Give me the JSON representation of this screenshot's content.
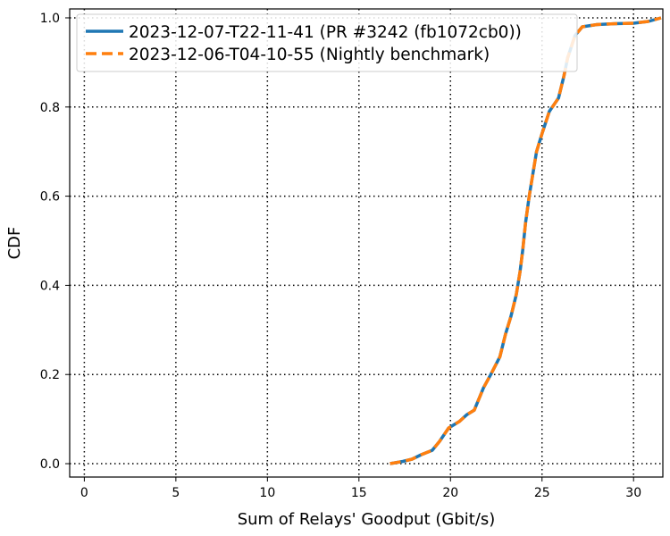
{
  "chart_data": {
    "type": "line",
    "title": "",
    "xlabel": "Sum of Relays' Goodput (Gbit/s)",
    "ylabel": "CDF",
    "xlim": [
      -0.8,
      31.6
    ],
    "ylim": [
      -0.03,
      1.02
    ],
    "xticks": [
      0,
      5,
      10,
      15,
      20,
      25,
      30
    ],
    "yticks": [
      0.0,
      0.2,
      0.4,
      0.6,
      0.8,
      1.0
    ],
    "xtick_labels": [
      "0",
      "5",
      "10",
      "15",
      "20",
      "25",
      "30"
    ],
    "ytick_labels": [
      "0.0",
      "0.2",
      "0.4",
      "0.6",
      "0.8",
      "1.0"
    ],
    "grid": true,
    "grid_style": "dotted",
    "legend_position": "top-left",
    "series": [
      {
        "name": "2023-12-07-T22-11-41 (PR #3242 (fb1072cb0))",
        "color": "#1f77b4",
        "linestyle": "solid",
        "x": [
          16.7,
          17.4,
          17.9,
          18.4,
          19.0,
          19.4,
          19.9,
          20.5,
          20.9,
          21.3,
          21.8,
          22.2,
          22.7,
          23.0,
          23.3,
          23.6,
          23.8,
          23.95,
          24.1,
          24.3,
          24.5,
          24.7,
          25.0,
          25.4,
          25.9,
          26.2,
          26.4,
          26.8,
          27.2,
          28.0,
          29.0,
          30.0,
          30.8,
          31.5
        ],
        "y": [
          0.0,
          0.005,
          0.01,
          0.02,
          0.03,
          0.05,
          0.08,
          0.095,
          0.11,
          0.12,
          0.17,
          0.2,
          0.24,
          0.29,
          0.33,
          0.38,
          0.43,
          0.48,
          0.54,
          0.6,
          0.65,
          0.7,
          0.74,
          0.79,
          0.82,
          0.87,
          0.91,
          0.96,
          0.98,
          0.985,
          0.987,
          0.988,
          0.992,
          1.0
        ]
      },
      {
        "name": "2023-12-06-T04-10-55 (Nightly benchmark)",
        "color": "#ff7f0e",
        "linestyle": "dashed",
        "x": [
          16.7,
          17.4,
          17.9,
          18.4,
          19.0,
          19.4,
          19.9,
          20.5,
          20.9,
          21.3,
          21.8,
          22.2,
          22.7,
          23.0,
          23.3,
          23.6,
          23.8,
          23.95,
          24.1,
          24.3,
          24.5,
          24.7,
          25.0,
          25.4,
          25.9,
          26.2,
          26.4,
          26.8,
          27.2,
          28.0,
          29.0,
          30.0,
          30.8,
          31.5
        ],
        "y": [
          0.0,
          0.005,
          0.01,
          0.02,
          0.03,
          0.05,
          0.08,
          0.095,
          0.11,
          0.12,
          0.17,
          0.2,
          0.24,
          0.29,
          0.33,
          0.38,
          0.43,
          0.48,
          0.54,
          0.6,
          0.65,
          0.7,
          0.74,
          0.79,
          0.82,
          0.87,
          0.91,
          0.96,
          0.98,
          0.985,
          0.987,
          0.988,
          0.992,
          1.0
        ]
      }
    ]
  }
}
